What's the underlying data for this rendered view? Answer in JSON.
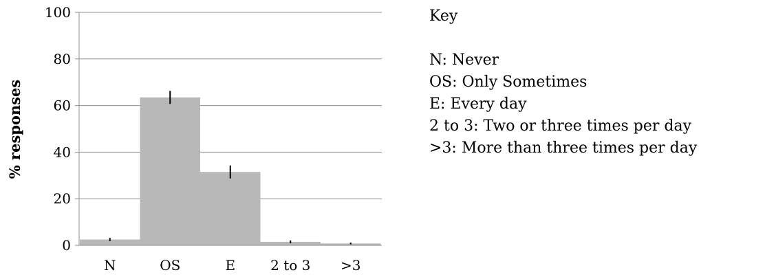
{
  "chart_data": {
    "type": "bar",
    "categories": [
      "N",
      "OS",
      "E",
      "2 to 3",
      ">3"
    ],
    "values": [
      2.5,
      63.5,
      31.5,
      1.5,
      0.8
    ],
    "error": [
      0.7,
      2.8,
      2.8,
      0.6,
      0.4
    ],
    "ylabel": "% responses",
    "xlabel": "",
    "ylim": [
      0,
      100
    ],
    "yticks": [
      0,
      20,
      40,
      60,
      80,
      100
    ],
    "grid": true,
    "bar_color": "#b8b8b8"
  },
  "key": {
    "title": "Key",
    "items": [
      "N: Never",
      "OS: Only Sometimes",
      "E: Every day",
      "2 to 3: Two or three times per day",
      ">3: More than three times per day"
    ]
  }
}
